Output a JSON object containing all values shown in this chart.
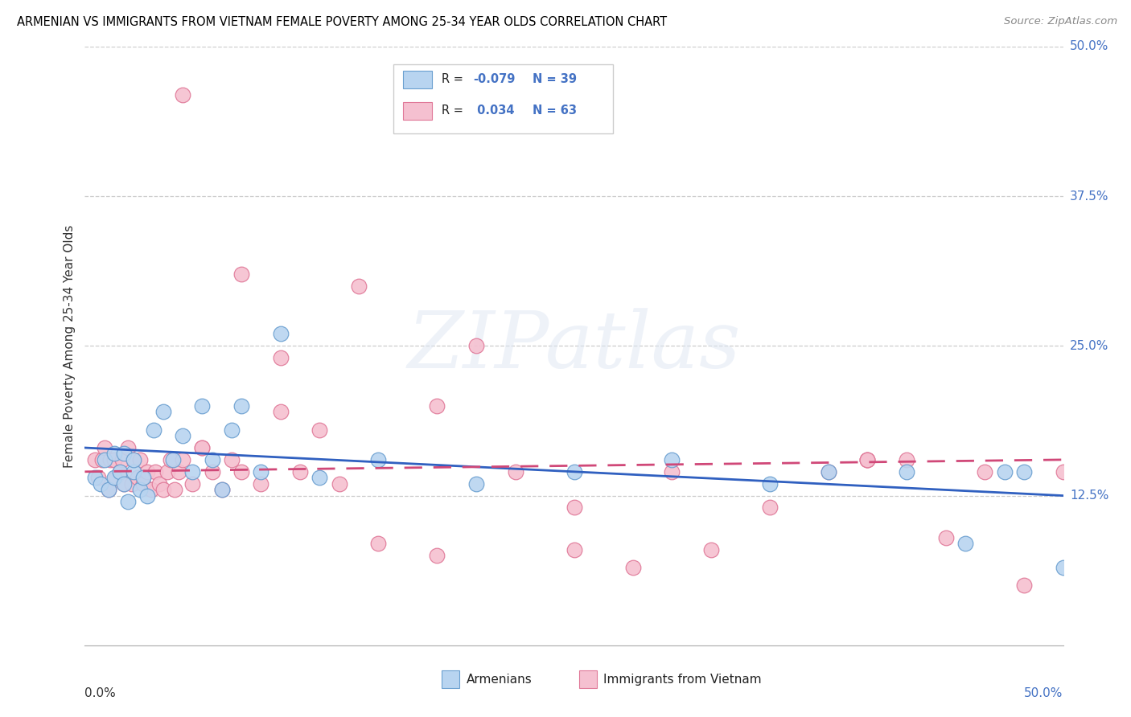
{
  "title": "ARMENIAN VS IMMIGRANTS FROM VIETNAM FEMALE POVERTY AMONG 25-34 YEAR OLDS CORRELATION CHART",
  "source": "Source: ZipAtlas.com",
  "ylabel": "Female Poverty Among 25-34 Year Olds",
  "xlim": [
    0.0,
    0.5
  ],
  "ylim": [
    0.0,
    0.5
  ],
  "yticks": [
    0.125,
    0.25,
    0.375,
    0.5
  ],
  "ytick_labels": [
    "12.5%",
    "25.0%",
    "37.5%",
    "50.0%"
  ],
  "armenian_color": "#b8d4f0",
  "armenian_edge": "#6a9fd0",
  "vietnam_color": "#f5c0d0",
  "vietnam_edge": "#e07898",
  "trendline_armenian_color": "#3060c0",
  "trendline_vietnam_color": "#d04878",
  "r_armenian": "-0.079",
  "n_armenian": "39",
  "r_vietnam": "0.034",
  "n_vietnam": "63",
  "armenians_x": [
    0.005,
    0.008,
    0.01,
    0.012,
    0.015,
    0.015,
    0.018,
    0.02,
    0.02,
    0.022,
    0.025,
    0.025,
    0.028,
    0.03,
    0.032,
    0.035,
    0.04,
    0.045,
    0.05,
    0.055,
    0.06,
    0.065,
    0.07,
    0.075,
    0.08,
    0.09,
    0.1,
    0.12,
    0.15,
    0.2,
    0.25,
    0.3,
    0.35,
    0.38,
    0.42,
    0.45,
    0.47,
    0.48,
    0.5
  ],
  "armenians_y": [
    0.14,
    0.135,
    0.155,
    0.13,
    0.14,
    0.16,
    0.145,
    0.135,
    0.16,
    0.12,
    0.145,
    0.155,
    0.13,
    0.14,
    0.125,
    0.18,
    0.195,
    0.155,
    0.175,
    0.145,
    0.2,
    0.155,
    0.13,
    0.18,
    0.2,
    0.145,
    0.26,
    0.14,
    0.155,
    0.135,
    0.145,
    0.155,
    0.135,
    0.145,
    0.145,
    0.085,
    0.145,
    0.145,
    0.065
  ],
  "vietnam_x": [
    0.005,
    0.007,
    0.009,
    0.01,
    0.012,
    0.013,
    0.015,
    0.016,
    0.018,
    0.019,
    0.02,
    0.022,
    0.024,
    0.025,
    0.027,
    0.028,
    0.03,
    0.032,
    0.034,
    0.036,
    0.038,
    0.04,
    0.042,
    0.044,
    0.046,
    0.048,
    0.05,
    0.055,
    0.06,
    0.065,
    0.07,
    0.075,
    0.08,
    0.09,
    0.1,
    0.11,
    0.13,
    0.15,
    0.18,
    0.2,
    0.22,
    0.25,
    0.28,
    0.3,
    0.32,
    0.35,
    0.38,
    0.4,
    0.42,
    0.44,
    0.46,
    0.48,
    0.5,
    0.05,
    0.08,
    0.1,
    0.14,
    0.18,
    0.25,
    0.4,
    0.06,
    0.12,
    0.4
  ],
  "vietnam_y": [
    0.155,
    0.14,
    0.155,
    0.165,
    0.13,
    0.155,
    0.155,
    0.14,
    0.145,
    0.155,
    0.135,
    0.165,
    0.135,
    0.155,
    0.14,
    0.155,
    0.135,
    0.145,
    0.13,
    0.145,
    0.135,
    0.13,
    0.145,
    0.155,
    0.13,
    0.145,
    0.155,
    0.135,
    0.165,
    0.145,
    0.13,
    0.155,
    0.145,
    0.135,
    0.195,
    0.145,
    0.135,
    0.085,
    0.075,
    0.25,
    0.145,
    0.115,
    0.065,
    0.145,
    0.08,
    0.115,
    0.145,
    0.155,
    0.155,
    0.09,
    0.145,
    0.05,
    0.145,
    0.46,
    0.31,
    0.24,
    0.3,
    0.2,
    0.08,
    0.155,
    0.165,
    0.18,
    0.155
  ]
}
